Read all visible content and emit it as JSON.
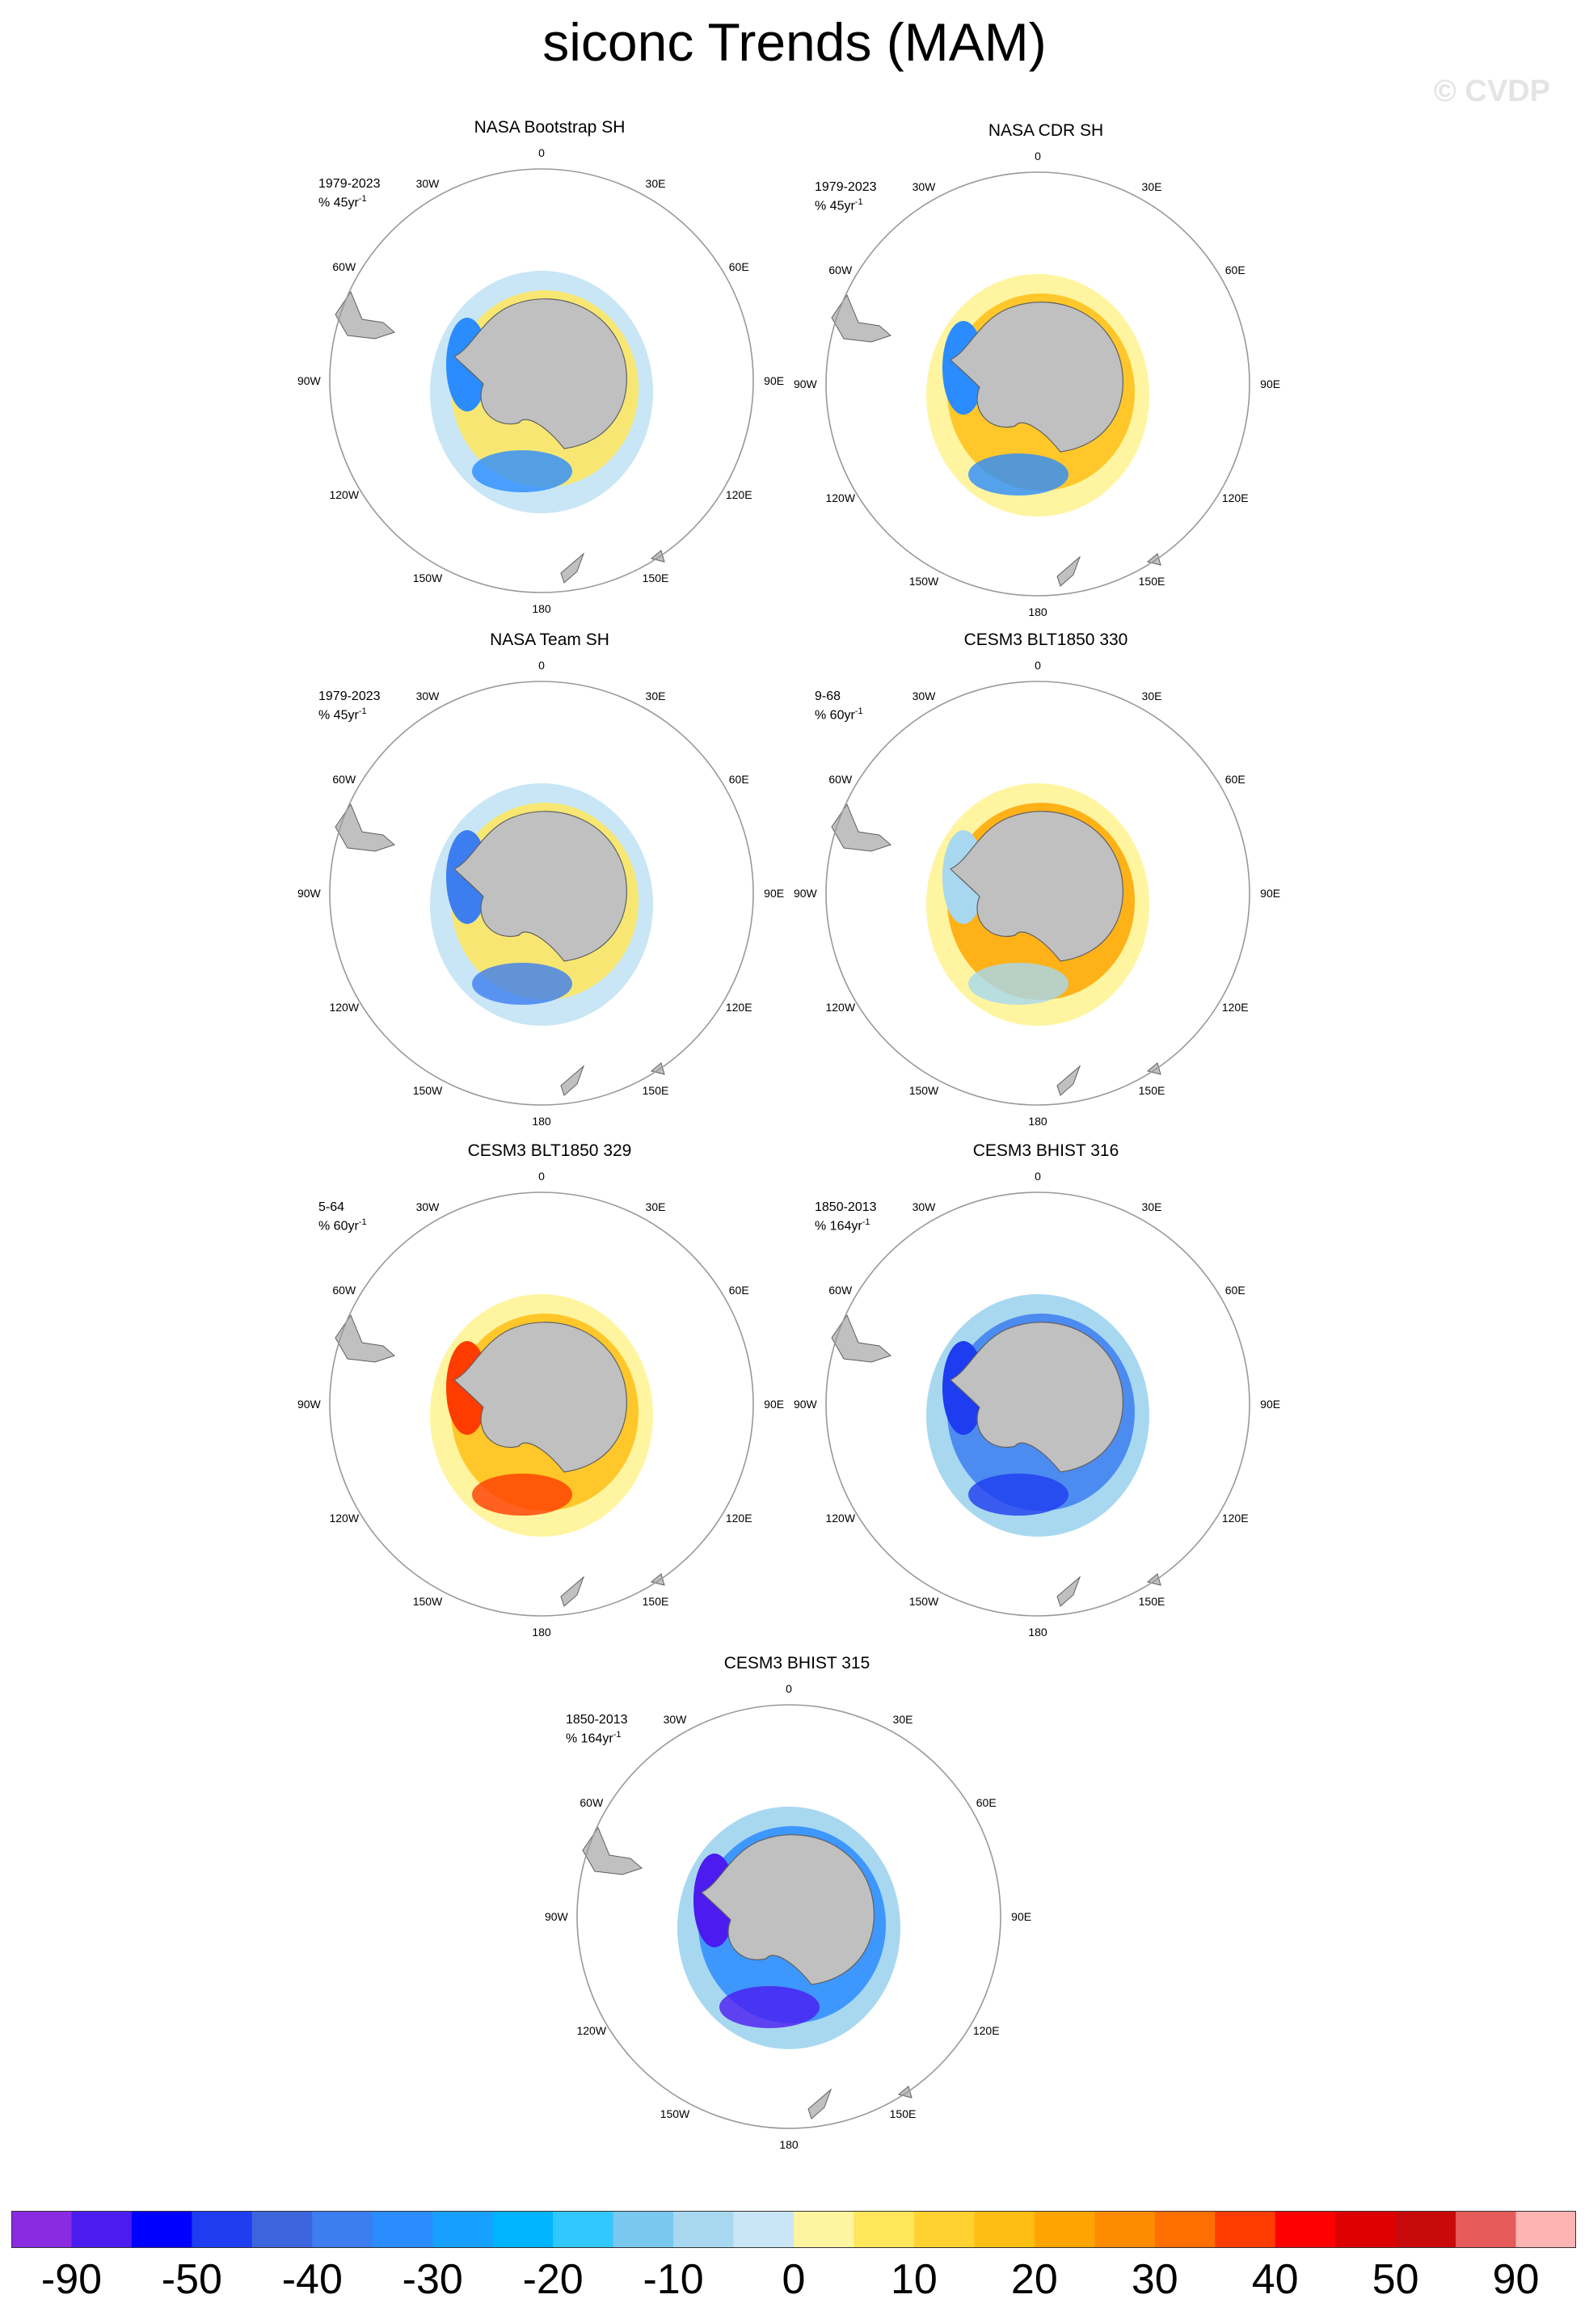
{
  "title": "siconc Trends (MAM)",
  "watermark": "© CVDP",
  "lon_labels": [
    "0",
    "30E",
    "60E",
    "90E",
    "120E",
    "150E",
    "180",
    "150W",
    "120W",
    "90W",
    "60W",
    "30W"
  ],
  "panels": [
    {
      "title": "NASA Bootstrap SH",
      "years": "1979-2023",
      "units": "% 45yr",
      "units_sup": "-1"
    },
    {
      "title": "NASA CDR SH",
      "years": "1979-2023",
      "units": "% 45yr",
      "units_sup": "-1"
    },
    {
      "title": "NASA Team SH",
      "years": "1979-2023",
      "units": "% 45yr",
      "units_sup": "-1"
    },
    {
      "title": "CESM3 BLT1850 330",
      "years": "9-68",
      "units": "% 60yr",
      "units_sup": "-1"
    },
    {
      "title": "CESM3 BLT1850 329",
      "years": "5-64",
      "units": "% 60yr",
      "units_sup": "-1"
    },
    {
      "title": "CESM3 BHIST 316",
      "years": "1850-2013",
      "units": "% 164yr",
      "units_sup": "-1"
    },
    {
      "title": "CESM3 BHIST 315",
      "years": "1850-2013",
      "units": "% 164yr",
      "units_sup": "-1"
    }
  ],
  "colorbar": {
    "labels": [
      "-90",
      "-50",
      "-40",
      "-30",
      "-20",
      "-10",
      "0",
      "10",
      "20",
      "30",
      "40",
      "50",
      "90"
    ],
    "colors": [
      "#8a2be2",
      "#4b1bf0",
      "#0000ff",
      "#1e3cf0",
      "#3c64dc",
      "#3c7ef0",
      "#2a8cff",
      "#17a0ff",
      "#00b4ff",
      "#32c8ff",
      "#78c8f0",
      "#a8d8f0",
      "#c8e6f5",
      "#fff5a0",
      "#ffe65a",
      "#ffd232",
      "#ffbe14",
      "#ffa500",
      "#ff8c00",
      "#ff6e00",
      "#ff3c00",
      "#ff0000",
      "#dc0000",
      "#c80a0a",
      "#e65a5a",
      "#ffb4b4"
    ]
  },
  "map_colors": {
    "land": "#c0c0c0",
    "land_edge": "#606060",
    "ring": "#999999"
  }
}
